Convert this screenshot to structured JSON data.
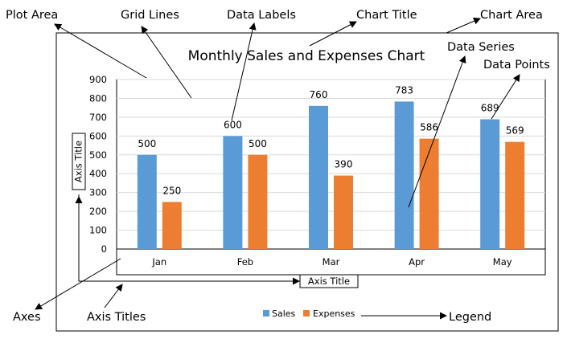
{
  "annotations": {
    "plot_area": "Plot Area",
    "grid_lines": "Grid Lines",
    "data_labels": "Data Labels",
    "chart_title": "Chart Title",
    "chart_area": "Chart Area",
    "data_series": "Data Series",
    "data_points": "Data Points",
    "axes": "Axes",
    "axis_titles": "Axis Titles",
    "legend": "Legend"
  },
  "colors": {
    "sales": "#5b9bd5",
    "expenses": "#ed7d31",
    "grid": "#d9d9d9",
    "frame": "#000000"
  },
  "chart_data": {
    "type": "bar",
    "title": "Monthly Sales and Expenses Chart",
    "xlabel": "Axis Title",
    "ylabel": "Axis Title",
    "categories": [
      "Jan",
      "Feb",
      "Mar",
      "Apr",
      "May"
    ],
    "series": [
      {
        "name": "Sales",
        "values": [
          500,
          600,
          760,
          783,
          689
        ]
      },
      {
        "name": "Expenses",
        "values": [
          250,
          500,
          390,
          586,
          569
        ]
      }
    ],
    "ylim": [
      0,
      900
    ],
    "yticks": [
      0,
      100,
      200,
      300,
      400,
      500,
      600,
      700,
      800,
      900
    ],
    "grid": true,
    "legend_position": "bottom"
  }
}
